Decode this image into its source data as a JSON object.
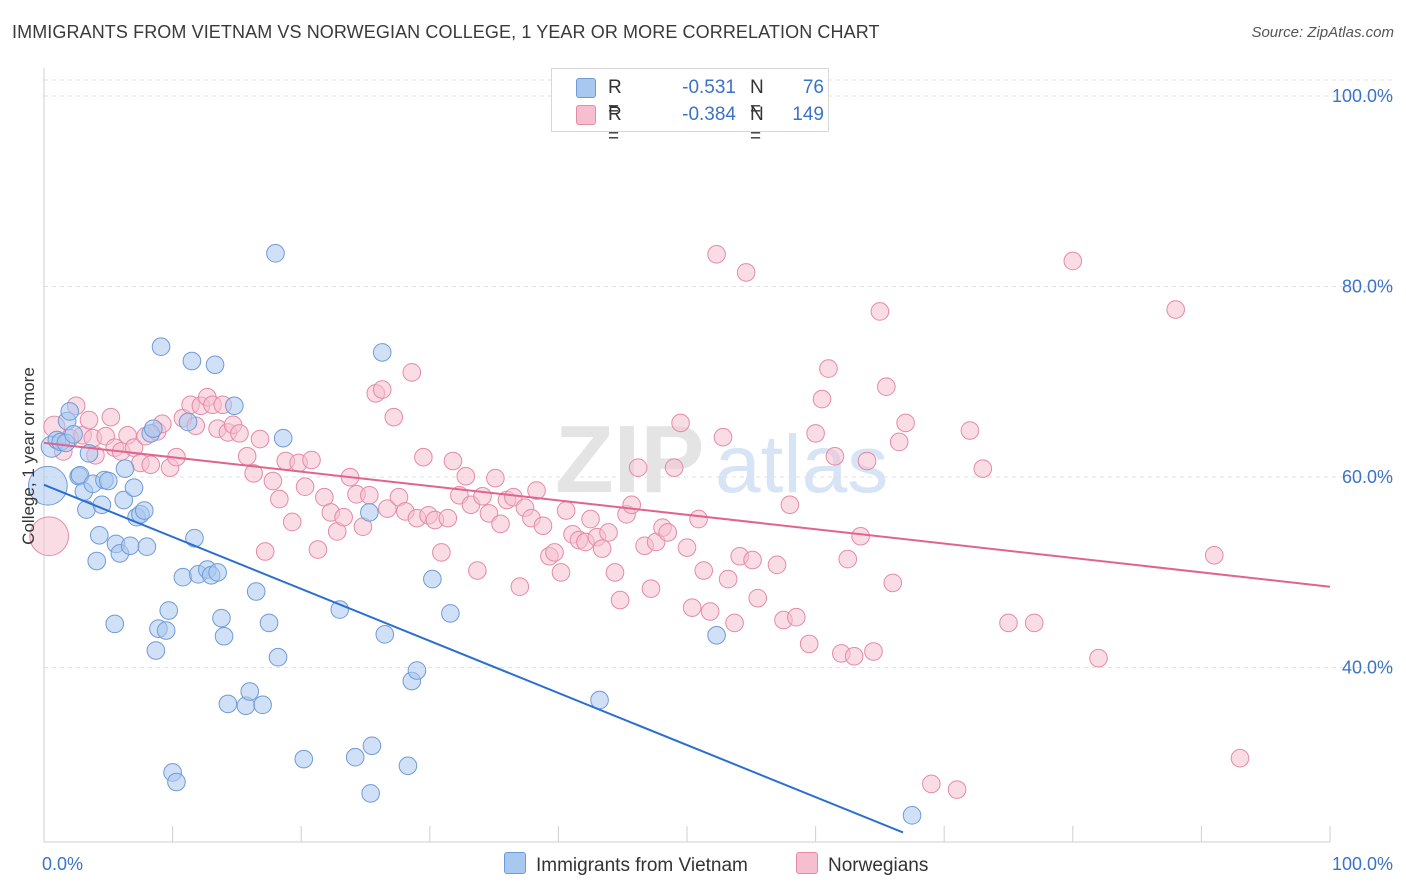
{
  "header": {
    "title": "IMMIGRANTS FROM VIETNAM VS NORWEGIAN COLLEGE, 1 YEAR OR MORE CORRELATION CHART",
    "source": "Source: ZipAtlas.com"
  },
  "watermark": {
    "zip": "ZIP",
    "atlas": "atlas"
  },
  "legend": {
    "rows": [
      {
        "r_label": "R =",
        "r_value": "-0.531",
        "n_label": "N =",
        "n_value": "76",
        "color": "#a9c8f0",
        "border": "#6f9ad8"
      },
      {
        "r_label": "R =",
        "r_value": "-0.384",
        "n_label": "N =",
        "n_value": "149",
        "color": "#f6bfd0",
        "border": "#e58aa8"
      }
    ]
  },
  "bottom_legend": {
    "items": [
      {
        "label": "Immigrants from Vietnam",
        "color": "#a9c8f0"
      },
      {
        "label": "Norwegians",
        "color": "#f6bfd0"
      }
    ]
  },
  "chart_data": {
    "type": "scatter",
    "xlabel": "",
    "ylabel": "College, 1 year or more",
    "xlim": [
      0,
      100
    ],
    "ylim": [
      20,
      100
    ],
    "x_tick_labels": [
      "0.0%",
      "100.0%"
    ],
    "y_tick_labels": [
      "100.0%",
      "80.0%",
      "60.0%",
      "40.0%"
    ],
    "y_ticks": [
      100,
      80,
      60,
      40
    ],
    "grid": "horizontal dashed",
    "series": [
      {
        "name": "Immigrants from Vietnam",
        "color": "#6f9ad8",
        "fill": "#a9c8f0",
        "line_color": "#2a6fd0",
        "trend": {
          "x": [
            0,
            66.8
          ],
          "y": [
            57.5,
            21.0
          ]
        },
        "points": [
          [
            0.3,
            57.4,
            22
          ],
          [
            0.6,
            61.5,
            12
          ],
          [
            1.0,
            62.2,
            10
          ],
          [
            1.3,
            62.0,
            10
          ],
          [
            1.7,
            61.9,
            10
          ],
          [
            1.8,
            64.2,
            10
          ],
          [
            2.0,
            65.2,
            10
          ],
          [
            2.3,
            62.8,
            10
          ],
          [
            2.7,
            58.4,
            10
          ],
          [
            2.8,
            58.5,
            10
          ],
          [
            3.1,
            56.8,
            10
          ],
          [
            3.3,
            54.9,
            10
          ],
          [
            3.5,
            60.8,
            10
          ],
          [
            3.8,
            57.6,
            10
          ],
          [
            4.1,
            49.5,
            10
          ],
          [
            4.3,
            52.2,
            10
          ],
          [
            4.5,
            55.4,
            10
          ],
          [
            4.7,
            58.0,
            10
          ],
          [
            5.0,
            57.9,
            10
          ],
          [
            5.5,
            42.9,
            10
          ],
          [
            5.6,
            51.3,
            10
          ],
          [
            5.9,
            50.3,
            10
          ],
          [
            6.2,
            55.9,
            10
          ],
          [
            6.3,
            59.2,
            10
          ],
          [
            6.7,
            51.1,
            10
          ],
          [
            7.0,
            57.2,
            10
          ],
          [
            7.2,
            54.1,
            10
          ],
          [
            7.5,
            54.4,
            10
          ],
          [
            7.8,
            54.8,
            10
          ],
          [
            8.0,
            51.0,
            10
          ],
          [
            8.3,
            62.9,
            10
          ],
          [
            8.5,
            63.4,
            10
          ],
          [
            8.7,
            40.1,
            10
          ],
          [
            8.9,
            42.4,
            10
          ],
          [
            9.1,
            72.0,
            10
          ],
          [
            9.5,
            42.2,
            10
          ],
          [
            9.7,
            44.3,
            10
          ],
          [
            10.0,
            27.3,
            10
          ],
          [
            10.3,
            26.3,
            10
          ],
          [
            10.8,
            47.8,
            10
          ],
          [
            11.2,
            64.1,
            10
          ],
          [
            11.5,
            70.5,
            10
          ],
          [
            11.7,
            51.9,
            10
          ],
          [
            12.0,
            48.1,
            10
          ],
          [
            12.7,
            48.6,
            10
          ],
          [
            13.0,
            48.0,
            10
          ],
          [
            13.3,
            70.1,
            10
          ],
          [
            13.5,
            48.3,
            10
          ],
          [
            13.8,
            43.5,
            10
          ],
          [
            14.0,
            41.6,
            10
          ],
          [
            14.3,
            34.5,
            10
          ],
          [
            14.8,
            65.8,
            10
          ],
          [
            15.7,
            34.3,
            10
          ],
          [
            16.0,
            35.8,
            10
          ],
          [
            16.5,
            46.3,
            10
          ],
          [
            17.0,
            34.4,
            10
          ],
          [
            17.5,
            43.0,
            10
          ],
          [
            18.0,
            81.8,
            10
          ],
          [
            18.2,
            39.4,
            10
          ],
          [
            18.6,
            62.4,
            10
          ],
          [
            20.2,
            28.7,
            10
          ],
          [
            23.0,
            44.4,
            10
          ],
          [
            24.2,
            28.9,
            10
          ],
          [
            25.3,
            54.6,
            10
          ],
          [
            25.4,
            25.1,
            10
          ],
          [
            25.5,
            30.1,
            10
          ],
          [
            26.3,
            71.4,
            10
          ],
          [
            26.5,
            41.8,
            10
          ],
          [
            28.3,
            28.0,
            10
          ],
          [
            28.6,
            36.9,
            10
          ],
          [
            29.0,
            38.0,
            10
          ],
          [
            30.2,
            47.6,
            10
          ],
          [
            31.6,
            44.0,
            10
          ],
          [
            43.2,
            34.9,
            10
          ],
          [
            52.3,
            41.7,
            10
          ],
          [
            67.5,
            22.8,
            10
          ]
        ]
      },
      {
        "name": "Norwegians",
        "color": "#e58aa8",
        "fill": "#f6bfd0",
        "line_color": "#e0648e",
        "trend": {
          "x": [
            0,
            100
          ],
          "y": [
            61.9,
            46.8
          ]
        },
        "points": [
          [
            0.4,
            52.1,
            22
          ],
          [
            0.8,
            63.6,
            12
          ],
          [
            1.5,
            61.0,
            10
          ],
          [
            2.0,
            62.4,
            10
          ],
          [
            2.5,
            65.8,
            10
          ],
          [
            3.0,
            62.7,
            10
          ],
          [
            3.5,
            64.3,
            10
          ],
          [
            3.8,
            62.4,
            10
          ],
          [
            4.0,
            60.6,
            10
          ],
          [
            4.8,
            62.6,
            10
          ],
          [
            5.2,
            64.6,
            10
          ],
          [
            5.5,
            61.4,
            10
          ],
          [
            6.0,
            61.0,
            10
          ],
          [
            6.5,
            62.7,
            10
          ],
          [
            7.0,
            61.4,
            10
          ],
          [
            7.5,
            59.8,
            10
          ],
          [
            7.9,
            62.6,
            10
          ],
          [
            8.3,
            59.6,
            10
          ],
          [
            8.8,
            63.1,
            10
          ],
          [
            9.2,
            63.9,
            10
          ],
          [
            9.8,
            59.3,
            10
          ],
          [
            10.3,
            60.4,
            10
          ],
          [
            10.8,
            64.5,
            10
          ],
          [
            11.4,
            65.9,
            10
          ],
          [
            11.8,
            63.7,
            10
          ],
          [
            12.2,
            65.8,
            10
          ],
          [
            12.7,
            66.7,
            10
          ],
          [
            13.1,
            65.9,
            10
          ],
          [
            13.5,
            63.4,
            10
          ],
          [
            13.9,
            65.9,
            10
          ],
          [
            14.3,
            63.0,
            10
          ],
          [
            14.7,
            63.8,
            10
          ],
          [
            15.2,
            62.9,
            10
          ],
          [
            15.8,
            60.5,
            10
          ],
          [
            16.3,
            58.7,
            10
          ],
          [
            16.8,
            62.3,
            10
          ],
          [
            17.2,
            50.5,
            10
          ],
          [
            17.8,
            57.9,
            10
          ],
          [
            18.3,
            56.0,
            10
          ],
          [
            18.8,
            60.0,
            10
          ],
          [
            19.3,
            53.6,
            10
          ],
          [
            19.8,
            59.8,
            10
          ],
          [
            20.3,
            57.3,
            10
          ],
          [
            20.8,
            60.1,
            10
          ],
          [
            21.3,
            50.7,
            10
          ],
          [
            21.8,
            56.2,
            10
          ],
          [
            22.3,
            54.6,
            10
          ],
          [
            22.8,
            52.6,
            10
          ],
          [
            23.3,
            54.1,
            10
          ],
          [
            23.8,
            58.3,
            10
          ],
          [
            24.3,
            56.5,
            10
          ],
          [
            24.8,
            53.1,
            10
          ],
          [
            25.3,
            56.4,
            10
          ],
          [
            25.8,
            67.1,
            10
          ],
          [
            26.3,
            67.5,
            10
          ],
          [
            26.7,
            55.0,
            10
          ],
          [
            27.2,
            64.6,
            10
          ],
          [
            27.6,
            56.2,
            10
          ],
          [
            28.1,
            54.7,
            10
          ],
          [
            28.6,
            69.3,
            10
          ],
          [
            29.0,
            54.0,
            10
          ],
          [
            29.5,
            60.4,
            10
          ],
          [
            29.9,
            54.3,
            10
          ],
          [
            30.4,
            53.8,
            10
          ],
          [
            30.9,
            50.4,
            10
          ],
          [
            31.4,
            54.0,
            10
          ],
          [
            31.8,
            60.0,
            10
          ],
          [
            32.3,
            56.4,
            10
          ],
          [
            32.8,
            58.4,
            10
          ],
          [
            33.2,
            55.4,
            10
          ],
          [
            33.7,
            48.5,
            10
          ],
          [
            34.1,
            56.3,
            10
          ],
          [
            34.6,
            54.5,
            10
          ],
          [
            35.1,
            58.2,
            10
          ],
          [
            35.5,
            53.4,
            10
          ],
          [
            36.0,
            55.9,
            10
          ],
          [
            36.5,
            56.2,
            10
          ],
          [
            37.0,
            46.8,
            10
          ],
          [
            37.4,
            55.1,
            10
          ],
          [
            37.9,
            54.0,
            10
          ],
          [
            38.3,
            56.9,
            10
          ],
          [
            38.8,
            53.2,
            10
          ],
          [
            39.3,
            50.0,
            10
          ],
          [
            39.7,
            50.4,
            10
          ],
          [
            40.2,
            48.3,
            10
          ],
          [
            40.6,
            54.8,
            10
          ],
          [
            41.1,
            52.3,
            10
          ],
          [
            41.6,
            51.7,
            10
          ],
          [
            42.1,
            51.5,
            10
          ],
          [
            42.5,
            53.9,
            10
          ],
          [
            43.0,
            52.0,
            10
          ],
          [
            43.4,
            50.8,
            10
          ],
          [
            43.9,
            52.5,
            10
          ],
          [
            44.4,
            48.3,
            10
          ],
          [
            44.8,
            45.4,
            10
          ],
          [
            45.3,
            54.4,
            10
          ],
          [
            45.7,
            55.4,
            10
          ],
          [
            46.2,
            59.3,
            10
          ],
          [
            46.7,
            51.1,
            10
          ],
          [
            47.2,
            46.6,
            10
          ],
          [
            47.6,
            51.5,
            10
          ],
          [
            48.1,
            53.0,
            10
          ],
          [
            48.5,
            52.5,
            10
          ],
          [
            49.0,
            59.3,
            10
          ],
          [
            49.5,
            64.0,
            10
          ],
          [
            50.0,
            50.9,
            10
          ],
          [
            50.4,
            44.6,
            10
          ],
          [
            50.9,
            53.9,
            10
          ],
          [
            51.3,
            48.5,
            10
          ],
          [
            51.8,
            44.2,
            10
          ],
          [
            52.3,
            81.7,
            10
          ],
          [
            52.8,
            62.5,
            10
          ],
          [
            53.2,
            47.6,
            10
          ],
          [
            53.7,
            43.0,
            10
          ],
          [
            54.1,
            50.0,
            10
          ],
          [
            54.6,
            79.8,
            10
          ],
          [
            55.1,
            49.6,
            10
          ],
          [
            55.5,
            45.6,
            10
          ],
          [
            57.0,
            49.1,
            10
          ],
          [
            57.5,
            43.3,
            10
          ],
          [
            58.0,
            55.4,
            10
          ],
          [
            58.5,
            43.6,
            10
          ],
          [
            59.5,
            40.8,
            10
          ],
          [
            60.0,
            62.9,
            10
          ],
          [
            60.5,
            66.5,
            10
          ],
          [
            61.0,
            69.7,
            10
          ],
          [
            61.5,
            60.5,
            10
          ],
          [
            62.0,
            39.8,
            10
          ],
          [
            62.5,
            49.7,
            10
          ],
          [
            63.0,
            39.5,
            10
          ],
          [
            63.5,
            52.1,
            10
          ],
          [
            64.0,
            60.0,
            10
          ],
          [
            64.5,
            40.0,
            10
          ],
          [
            65.0,
            75.7,
            10
          ],
          [
            65.5,
            67.8,
            10
          ],
          [
            66.0,
            47.2,
            10
          ],
          [
            66.5,
            62.0,
            10
          ],
          [
            67.0,
            64.0,
            10
          ],
          [
            69.0,
            26.1,
            10
          ],
          [
            71.0,
            25.5,
            10
          ],
          [
            72.0,
            63.2,
            10
          ],
          [
            73.0,
            59.2,
            10
          ],
          [
            75.0,
            43.0,
            10
          ],
          [
            77.0,
            43.0,
            10
          ],
          [
            80.0,
            81.0,
            10
          ],
          [
            82.0,
            39.3,
            10
          ],
          [
            88.0,
            75.9,
            10
          ],
          [
            91.0,
            50.1,
            10
          ],
          [
            93.0,
            28.8,
            10
          ]
        ]
      }
    ]
  }
}
